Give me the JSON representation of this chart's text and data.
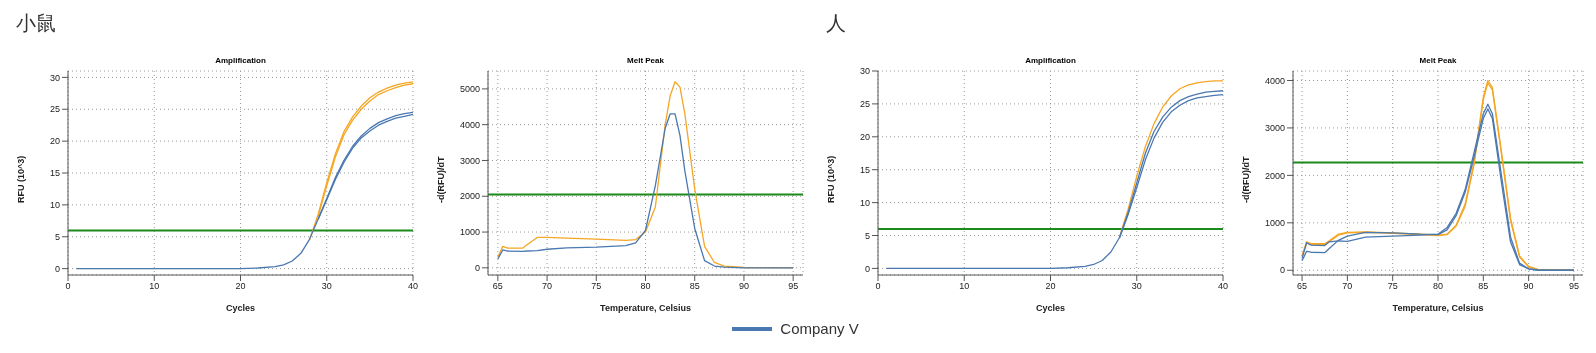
{
  "chart_data": [
    {
      "type": "line",
      "title": "Amplification",
      "xlabel": "Cycles",
      "ylabel": "RFU (10^3)",
      "annotations": [
        "小鼠"
      ],
      "legend": "bottom",
      "grid": true,
      "xlim": [
        0,
        40
      ],
      "xticks": [
        0,
        10,
        20,
        30,
        40
      ],
      "ylim": [
        -1,
        31
      ],
      "yticks": [
        0,
        5,
        10,
        15,
        20,
        25,
        30
      ],
      "x": [
        1,
        10,
        20,
        22,
        24,
        25,
        26,
        27,
        28,
        29,
        30,
        31,
        32,
        33,
        34,
        35,
        36,
        37,
        38,
        39,
        40
      ],
      "ref_lines": [
        {
          "axis": "y",
          "value": 6,
          "color": "#1a8a1a"
        }
      ],
      "series": [
        {
          "color": "#f5a623",
          "values": [
            null,
            null,
            null,
            null,
            null,
            null,
            null,
            null,
            4.5,
            8.5,
            13.5,
            18,
            21.5,
            23.8,
            25.5,
            26.8,
            27.7,
            28.3,
            28.8,
            29.1,
            29.3
          ]
        },
        {
          "color": "#f5a623",
          "values": [
            null,
            null,
            null,
            null,
            null,
            null,
            null,
            null,
            null,
            8.2,
            13,
            17.5,
            21,
            23.3,
            25,
            26.3,
            27.3,
            27.9,
            28.4,
            28.8,
            29
          ]
        },
        {
          "name": "Company V",
          "color": "#4a78b0",
          "values": [
            0,
            0,
            0,
            0.1,
            0.3,
            0.6,
            1.2,
            2.4,
            4.6,
            7.8,
            11,
            14.3,
            17,
            19.2,
            20.8,
            22,
            22.9,
            23.5,
            24,
            24.3,
            24.5
          ]
        },
        {
          "color": "#4a78b0",
          "values": [
            null,
            null,
            null,
            null,
            null,
            null,
            null,
            null,
            null,
            7.7,
            10.8,
            14,
            16.7,
            18.9,
            20.5,
            21.6,
            22.5,
            23.1,
            23.6,
            23.9,
            24.2
          ]
        }
      ]
    },
    {
      "type": "line",
      "title": "Melt Peak",
      "xlabel": "Temperature, Celsius",
      "ylabel": "-d(RFU)/dT",
      "grid": true,
      "xlim": [
        64,
        96
      ],
      "xticks": [
        65,
        70,
        75,
        80,
        85,
        90,
        95
      ],
      "ylim": [
        -200,
        5500
      ],
      "yticks": [
        0,
        1000,
        2000,
        3000,
        4000,
        5000
      ],
      "x": [
        65,
        65.5,
        66,
        67.5,
        68,
        69,
        70,
        72,
        75,
        78,
        79,
        80,
        81,
        82,
        82.5,
        83,
        83.5,
        84,
        85,
        86,
        87,
        88,
        90,
        95
      ],
      "ref_lines": [
        {
          "axis": "y",
          "value": 2050,
          "color": "#1a8a1a"
        }
      ],
      "series": [
        {
          "color": "#f5a623",
          "values": [
            300,
            600,
            550,
            550,
            650,
            850,
            850,
            830,
            800,
            770,
            790,
            1000,
            1700,
            4000,
            4800,
            5200,
            5050,
            4300,
            2200,
            600,
            150,
            50,
            10,
            0
          ]
        },
        {
          "color": "#4a78b0",
          "values": [
            250,
            500,
            470,
            460,
            470,
            480,
            520,
            560,
            580,
            620,
            700,
            1050,
            2300,
            3900,
            4300,
            4300,
            3700,
            2700,
            1100,
            200,
            50,
            20,
            0,
            0
          ]
        }
      ]
    },
    {
      "type": "line",
      "title": "Amplification",
      "xlabel": "Cycles",
      "ylabel": "RFU (10^3)",
      "annotations": [
        "人"
      ],
      "grid": true,
      "xlim": [
        0,
        40
      ],
      "xticks": [
        0,
        10,
        20,
        30,
        40
      ],
      "ylim": [
        -1,
        30
      ],
      "yticks": [
        0,
        5,
        10,
        15,
        20,
        25,
        30
      ],
      "x": [
        1,
        10,
        20,
        22,
        24,
        25,
        26,
        27,
        28,
        29,
        30,
        31,
        32,
        33,
        34,
        35,
        36,
        37,
        38,
        39,
        40
      ],
      "ref_lines": [
        {
          "axis": "y",
          "value": 6,
          "color": "#1a8a1a"
        }
      ],
      "series": [
        {
          "color": "#f5a623",
          "values": [
            null,
            null,
            null,
            null,
            null,
            null,
            null,
            null,
            4.8,
            9,
            14,
            18.5,
            22,
            24.5,
            26.2,
            27.3,
            27.9,
            28.2,
            28.4,
            28.5,
            28.5
          ]
        },
        {
          "color": "#4a78b0",
          "values": [
            0,
            0,
            0,
            0.1,
            0.3,
            0.6,
            1.2,
            2.5,
            4.7,
            8.5,
            13,
            17.5,
            20.8,
            23,
            24.5,
            25.5,
            26.1,
            26.5,
            26.8,
            26.9,
            27
          ]
        },
        {
          "color": "#4a78b0",
          "values": [
            null,
            null,
            null,
            null,
            null,
            null,
            null,
            null,
            4.6,
            8.2,
            12.3,
            16.5,
            19.8,
            22.2,
            23.8,
            24.8,
            25.5,
            25.9,
            26.1,
            26.3,
            26.4
          ]
        }
      ]
    },
    {
      "type": "line",
      "title": "Melt Peak",
      "xlabel": "Temperature, Celsius",
      "ylabel": "-d(RFU)/dT",
      "grid": true,
      "xlim": [
        64,
        96
      ],
      "xticks": [
        65,
        70,
        75,
        80,
        85,
        90,
        95
      ],
      "ylim": [
        -100,
        4200
      ],
      "yticks": [
        0,
        1000,
        2000,
        3000,
        4000
      ],
      "x": [
        65,
        65.5,
        66,
        67.5,
        68,
        69,
        70,
        72,
        75,
        78,
        80,
        81,
        82,
        83,
        84,
        85,
        85.5,
        86,
        87,
        88,
        89,
        90,
        91,
        95
      ],
      "ref_lines": [
        {
          "axis": "y",
          "value": 2270,
          "color": "#1a8a1a"
        }
      ],
      "series": [
        {
          "color": "#f5a623",
          "values": [
            300,
            600,
            560,
            560,
            620,
            760,
            800,
            810,
            790,
            760,
            740,
            760,
            950,
            1400,
            2300,
            3650,
            4000,
            3850,
            2500,
            1100,
            300,
            80,
            20,
            0
          ]
        },
        {
          "color": "#f5a623",
          "values": [
            300,
            570,
            540,
            540,
            600,
            740,
            790,
            800,
            780,
            750,
            730,
            750,
            930,
            1350,
            2250,
            3600,
            3950,
            3800,
            2450,
            1050,
            280,
            70,
            20,
            0
          ]
        },
        {
          "color": "#4a78b0",
          "values": [
            250,
            580,
            530,
            520,
            600,
            620,
            610,
            700,
            720,
            740,
            760,
            900,
            1200,
            1700,
            2500,
            3300,
            3500,
            3300,
            2000,
            700,
            150,
            30,
            10,
            0
          ]
        },
        {
          "color": "#4a78b0",
          "values": [
            200,
            400,
            380,
            370,
            460,
            630,
            720,
            800,
            790,
            760,
            750,
            850,
            1150,
            1650,
            2400,
            3200,
            3400,
            3200,
            1850,
            600,
            120,
            30,
            0,
            0
          ]
        }
      ]
    }
  ]
}
